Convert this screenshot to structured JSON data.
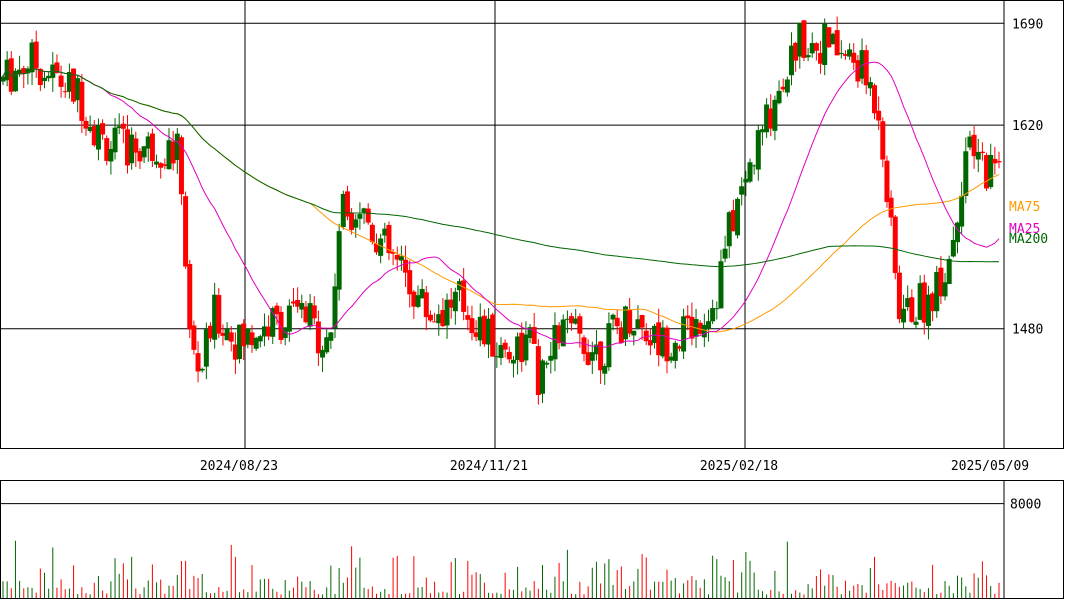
{
  "chart_data": {
    "type": "candlestick",
    "price_axis": {
      "ticks": [
        1480,
        1620,
        1690
      ],
      "tick_labels": [
        "1480",
        "1620",
        "1690"
      ],
      "ylim": [
        1398,
        1706
      ]
    },
    "date_axis": {
      "tick_labels": [
        "2024/08/23",
        "2024/11/21",
        "2025/02/18",
        "2025/05/09"
      ]
    },
    "volume_axis": {
      "ticks": [
        8000
      ],
      "tick_labels": [
        "8000"
      ],
      "ylim": [
        0,
        10000
      ]
    },
    "series": [
      {
        "name": "MA75",
        "color": "#ff9900"
      },
      {
        "name": "MA25",
        "color": "#e000c0"
      },
      {
        "name": "MA200",
        "color": "#006600"
      }
    ],
    "colors": {
      "up": "#006600",
      "down": "#ff0000",
      "grid": "#000000"
    }
  }
}
